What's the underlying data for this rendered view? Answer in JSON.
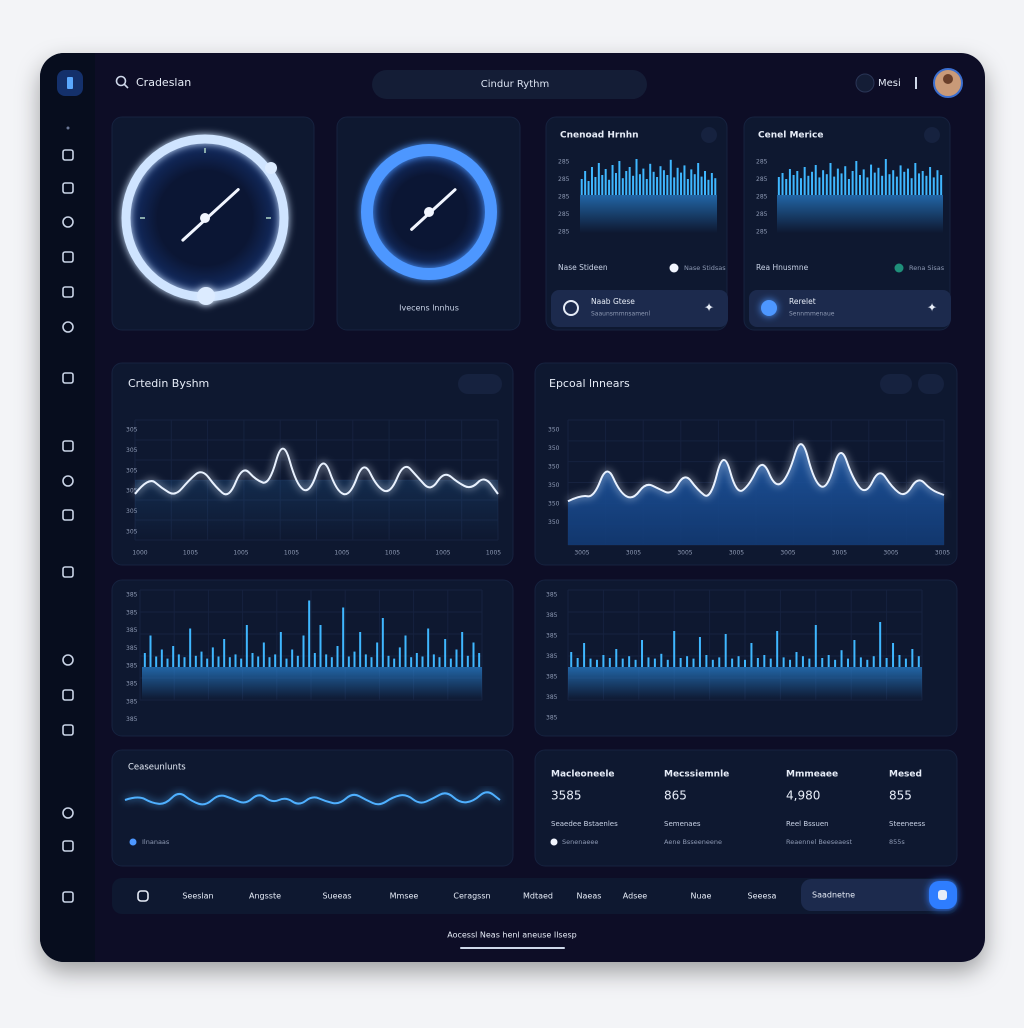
{
  "header": {
    "search": "Cradeslan",
    "title": "Cindur Rythm",
    "user": "Mesi"
  },
  "dial_label": "Ivecens lnnhus",
  "mini_panels": [
    {
      "title": "Cnenoad Hrnhn",
      "axis": [
        "285",
        "285",
        "285",
        "285",
        "285"
      ],
      "values": [
        40,
        60,
        35,
        70,
        45,
        80,
        50,
        65,
        38,
        75,
        55,
        85,
        42,
        60,
        70,
        48,
        90,
        52,
        66,
        40,
        78,
        58,
        45,
        72,
        62,
        50,
        88,
        44,
        68,
        56,
        74,
        40,
        64,
        52,
        80,
        46,
        60,
        38,
        55,
        42
      ],
      "footer": "Nase Stideen",
      "footer_note": "Nase Stidsas",
      "button_title": "Naab Gtese",
      "button_sub": "Saaunsmmnsamenl"
    },
    {
      "title": "Cenel Merice",
      "axis": [
        "285",
        "285",
        "285",
        "285",
        "285"
      ],
      "values": [
        45,
        55,
        40,
        65,
        50,
        60,
        42,
        70,
        48,
        58,
        75,
        44,
        62,
        52,
        80,
        46,
        66,
        54,
        72,
        40,
        60,
        85,
        50,
        64,
        44,
        76,
        56,
        68,
        48,
        90,
        52,
        62,
        46,
        74,
        58,
        66,
        42,
        80,
        54,
        60,
        48,
        70,
        44,
        62,
        50
      ],
      "footer": "Rea Hnusmne",
      "footer_note": "Rena Sisas",
      "button_title": "Rerelet",
      "button_sub": "Sennmmenaue"
    }
  ],
  "charts": [
    {
      "title": "Crtedin Byshm",
      "axis_y": [
        "305",
        "305",
        "305",
        "305",
        "305",
        "305"
      ],
      "axis_x": [
        "1000",
        "1005",
        "1005",
        "1005",
        "1005",
        "1005",
        "1005",
        "1005"
      ],
      "values": [
        40,
        55,
        45,
        38,
        52,
        62,
        46,
        36,
        65,
        52,
        48,
        90,
        48,
        40,
        75,
        42,
        38,
        70,
        46,
        40,
        68,
        55,
        42,
        60,
        50,
        44,
        56,
        40
      ]
    },
    {
      "title": "Epcoal lnnears",
      "axis_y": [
        "350",
        "350",
        "350",
        "350",
        "350",
        "350"
      ],
      "axis_x": [
        "3005",
        "3005",
        "3005",
        "3005",
        "3005",
        "3005",
        "3005",
        "3005"
      ],
      "values": [
        35,
        40,
        38,
        65,
        42,
        36,
        50,
        45,
        40,
        58,
        44,
        36,
        78,
        40,
        48,
        70,
        45,
        55,
        90,
        50,
        44,
        82,
        52,
        40,
        62,
        46,
        38,
        55,
        44,
        40
      ]
    },
    {
      "axis_y": [
        "385",
        "385",
        "385",
        "385",
        "385",
        "385",
        "385",
        "385"
      ],
      "values": [
        20,
        45,
        15,
        25,
        12,
        30,
        18,
        14,
        55,
        16,
        22,
        12,
        28,
        15,
        40,
        14,
        18,
        12,
        60,
        20,
        15,
        35,
        14,
        18,
        50,
        12,
        25,
        16,
        45,
        95,
        20,
        60,
        18,
        14,
        30,
        85,
        15,
        22,
        50,
        18,
        14,
        35,
        70,
        16,
        12,
        28,
        45,
        14,
        20,
        15,
        55,
        18,
        14,
        40,
        12,
        25,
        50,
        16,
        35,
        20
      ]
    },
    {
      "axis_y": [
        "385",
        "385",
        "385",
        "385",
        "385",
        "385",
        "385"
      ],
      "values": [
        25,
        15,
        40,
        14,
        12,
        20,
        15,
        30,
        14,
        18,
        12,
        45,
        16,
        14,
        22,
        12,
        60,
        15,
        18,
        14,
        50,
        20,
        12,
        16,
        55,
        14,
        18,
        12,
        40,
        15,
        20,
        14,
        60,
        16,
        12,
        25,
        18,
        14,
        70,
        15,
        20,
        12,
        28,
        14,
        45,
        16,
        12,
        18,
        75,
        15,
        40,
        20,
        14,
        30,
        18
      ]
    },
    {
      "title": "Ceaseunlunts",
      "legend": "Ilnanaas",
      "values": [
        50,
        65,
        40,
        35,
        80,
        45,
        30,
        70,
        55,
        35,
        75,
        40,
        60,
        30,
        65,
        45,
        35,
        75,
        50,
        30,
        60,
        70,
        35,
        55,
        80,
        40,
        45,
        85,
        50
      ]
    }
  ],
  "stats": [
    {
      "label": "Macleoneele",
      "value": "3585",
      "note": "Seaedee Bstaenles",
      "sub": "Senenaeee"
    },
    {
      "label": "Mecssiemnle",
      "value": "865",
      "note": "Semenaes",
      "sub": "Aene Bsseeneene"
    },
    {
      "label": "Mmmeaee",
      "value": "4,980",
      "note": "Reel Bssuen",
      "sub": "Reaennel Beeseaest"
    },
    {
      "label": "Mesed",
      "value": "855",
      "note": "Steeneess",
      "sub": "855s"
    }
  ],
  "nav": [
    "Seeslan",
    "Angsste",
    "Sueeas",
    "Mmsee",
    "Ceragssn",
    "Mdtaed",
    "Naeas",
    "Adsee",
    "Nuae",
    "Seeesa"
  ],
  "nav_action": "Saadnetne",
  "footer": "Aocessl Neas henl aneuse Ilsesp"
}
